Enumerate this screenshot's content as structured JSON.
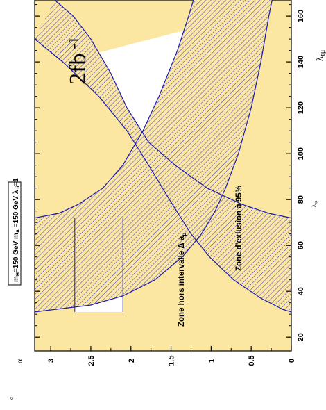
{
  "chart_data": {
    "type": "area",
    "orientation": "rotated-90-ccw",
    "title": "",
    "parameter_box": {
      "prefix": "m",
      "prefix_sub": "H",
      "segment1": "=150 GeV  m",
      "segment1_sub": "A",
      "segment2": " =150 GeV ",
      "lambda_symbol": "λ",
      "lambda_sub": " ii",
      "segment3": "=1"
    },
    "luminosity_label": {
      "main": "2fb",
      "exponent": "-1"
    },
    "x_axis": {
      "label_symbol": "λ",
      "label_sub": "τμ",
      "range": [
        14,
        167
      ],
      "ticks": [
        "20",
        "40",
        "60",
        "80",
        "100",
        "120",
        "140",
        "160"
      ],
      "mid_label_symbol": "λ",
      "mid_label_sub": "τμ"
    },
    "y_axis": {
      "label_symbol": "α",
      "range": [
        0,
        3.2
      ],
      "ticks": [
        "0",
        "0.5",
        "1",
        "1.5",
        "2",
        "2.5",
        "3"
      ],
      "mid_label_symbol": "α"
    },
    "regions": [
      {
        "name": "Zone hors intervalle  Δ a",
        "name_sub": "μ",
        "fill": "white",
        "description": "allowed band bounded by inner exclusion contours"
      },
      {
        "name": "Zone d'exlusion à 95%",
        "fill": "blue-hatched",
        "description": "95% CL exclusion bands"
      }
    ],
    "series": [
      {
        "role": "left-band-outer",
        "points": [
          [
            31,
            3.2
          ],
          [
            34,
            2.5
          ],
          [
            38,
            2.1
          ],
          [
            45,
            1.7
          ],
          [
            55,
            1.36
          ],
          [
            65,
            1.12
          ],
          [
            75,
            0.95
          ],
          [
            85,
            0.82
          ],
          [
            100,
            0.66
          ],
          [
            120,
            0.5
          ],
          [
            140,
            0.38
          ],
          [
            160,
            0.28
          ],
          [
            167,
            0.24
          ]
        ]
      },
      {
        "role": "left-band-inner",
        "points": [
          [
            72,
            3.2
          ],
          [
            74,
            2.9
          ],
          [
            78,
            2.65
          ],
          [
            85,
            2.35
          ],
          [
            95,
            2.1
          ],
          [
            110,
            1.85
          ],
          [
            125,
            1.65
          ],
          [
            145,
            1.42
          ],
          [
            160,
            1.28
          ],
          [
            167,
            1.22
          ]
        ]
      },
      {
        "role": "right-band-outer",
        "points": [
          [
            150,
            3.2
          ],
          [
            140,
            2.85
          ],
          [
            125,
            2.4
          ],
          [
            110,
            2.05
          ],
          [
            95,
            1.78
          ],
          [
            80,
            1.52
          ],
          [
            65,
            1.25
          ],
          [
            55,
            1.02
          ],
          [
            45,
            0.72
          ],
          [
            37,
            0.38
          ],
          [
            32,
            0.1
          ],
          [
            31,
            0.0
          ]
        ]
      },
      {
        "role": "right-band-inner",
        "points": [
          [
            167,
            2.95
          ],
          [
            160,
            2.72
          ],
          [
            150,
            2.5
          ],
          [
            135,
            2.25
          ],
          [
            120,
            2.05
          ],
          [
            105,
            1.78
          ],
          [
            95,
            1.45
          ],
          [
            85,
            1.05
          ],
          [
            78,
            0.62
          ],
          [
            74,
            0.28
          ],
          [
            72,
            0.0
          ]
        ]
      },
      {
        "role": "horizontal-boundary-left",
        "points": [
          [
            31,
            2.7
          ],
          [
            72,
            2.7
          ]
        ]
      },
      {
        "role": "horizontal-boundary-right",
        "points": [
          [
            31,
            2.1
          ],
          [
            72,
            2.1
          ]
        ]
      }
    ],
    "colors": {
      "background": "#fbe6a2",
      "band_outline": "#1a1ab2",
      "hatch": "#3a3acc",
      "allowed": "#ffffff"
    }
  }
}
